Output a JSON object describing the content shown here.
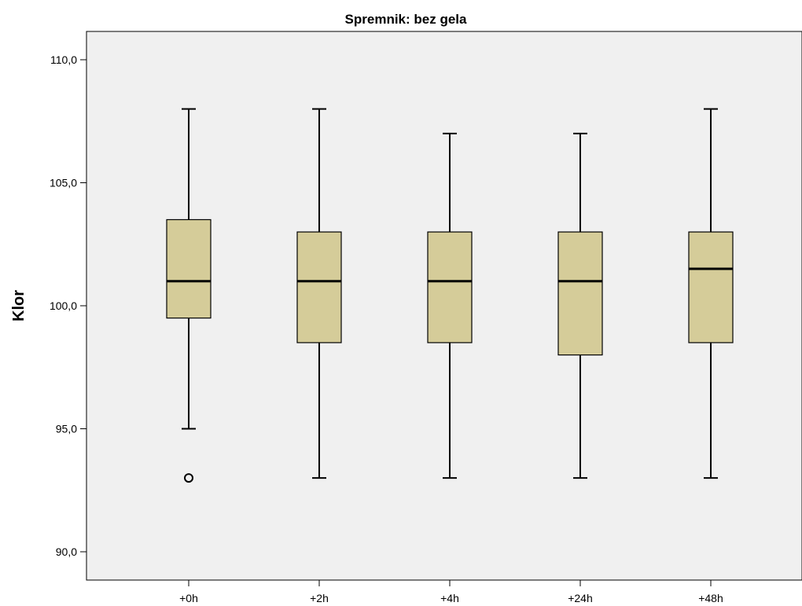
{
  "chart_data": {
    "type": "boxplot",
    "title": "Spremnik: bez gela",
    "xlabel": "",
    "ylabel": "Klor",
    "ylim": [
      89,
      111
    ],
    "yticks": [
      {
        "value": 90,
        "label": "90,0"
      },
      {
        "value": 95,
        "label": "95,0"
      },
      {
        "value": 100,
        "label": "100,0"
      },
      {
        "value": 105,
        "label": "105,0"
      },
      {
        "value": 110,
        "label": "110,0"
      }
    ],
    "categories": [
      "+0h",
      "+2h",
      "+4h",
      "+24h",
      "+48h"
    ],
    "boxes": [
      {
        "category": "+0h",
        "whisker_low": 95,
        "q1": 99.5,
        "median": 101,
        "q3": 103.5,
        "whisker_high": 108,
        "outliers": [
          93
        ]
      },
      {
        "category": "+2h",
        "whisker_low": 93,
        "q1": 98.5,
        "median": 101,
        "q3": 103,
        "whisker_high": 108,
        "outliers": []
      },
      {
        "category": "+4h",
        "whisker_low": 93,
        "q1": 98.5,
        "median": 101,
        "q3": 103,
        "whisker_high": 107,
        "outliers": []
      },
      {
        "category": "+24h",
        "whisker_low": 93,
        "q1": 98,
        "median": 101,
        "q3": 103,
        "whisker_high": 107,
        "outliers": []
      },
      {
        "category": "+48h",
        "whisker_low": 93,
        "q1": 98.5,
        "median": 101.5,
        "q3": 103,
        "whisker_high": 108,
        "outliers": []
      }
    ],
    "colors": {
      "box_fill": "#d5cc99",
      "plot_background": "#f0f0f0",
      "stroke": "#000000"
    },
    "grid": false,
    "legend": "none"
  }
}
